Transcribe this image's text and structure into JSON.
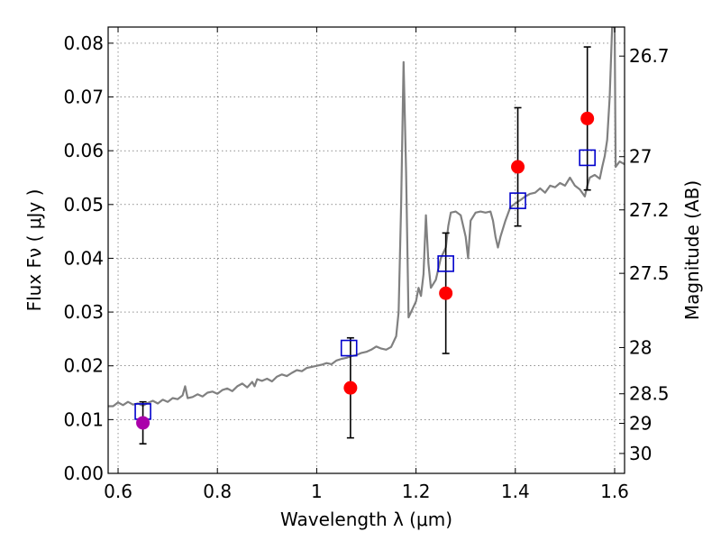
{
  "chart_data": {
    "type": "scatter",
    "title": "",
    "xlabel": "Wavelength  λ (μm)",
    "ylabel": "Flux  Fν  ( μJy )",
    "y2label": "Magnitude (AB)",
    "xlim": [
      0.58,
      1.62
    ],
    "ylim": [
      0.0,
      0.083
    ],
    "grid": true,
    "x_ticks": [
      0.6,
      0.8,
      1.0,
      1.2,
      1.4,
      1.6
    ],
    "x_tick_labels": [
      "0.6",
      "0.8",
      "1",
      "1.2",
      "1.4",
      "1.6"
    ],
    "y_ticks": [
      0.0,
      0.01,
      0.02,
      0.03,
      0.04,
      0.05,
      0.06,
      0.07,
      0.08
    ],
    "y_tick_labels": [
      "0.00",
      "0.01",
      "0.02",
      "0.03",
      "0.04",
      "0.05",
      "0.06",
      "0.07",
      "0.08"
    ],
    "y2_ticks": [
      {
        "label": "26.7",
        "flux": 0.0776
      },
      {
        "label": "27",
        "flux": 0.0589
      },
      {
        "label": "27.2",
        "flux": 0.049
      },
      {
        "label": "27.5",
        "flux": 0.0372
      },
      {
        "label": "28",
        "flux": 0.0234
      },
      {
        "label": "28.5",
        "flux": 0.0148
      },
      {
        "label": "29",
        "flux": 0.0093
      },
      {
        "label": "30",
        "flux": 0.0037
      }
    ],
    "colors": {
      "model": "#808080",
      "observed": "#ff0000",
      "observed_optical": "#aa00aa",
      "model_box": "#0000cc",
      "errorbar": "#000000"
    },
    "series": [
      {
        "name": "model spectrum",
        "kind": "line",
        "points": [
          [
            0.58,
            0.0125
          ],
          [
            0.59,
            0.0125
          ],
          [
            0.6,
            0.0132
          ],
          [
            0.61,
            0.0127
          ],
          [
            0.62,
            0.0133
          ],
          [
            0.63,
            0.0128
          ],
          [
            0.64,
            0.013
          ],
          [
            0.65,
            0.0126
          ],
          [
            0.66,
            0.0131
          ],
          [
            0.67,
            0.0135
          ],
          [
            0.68,
            0.013
          ],
          [
            0.69,
            0.0137
          ],
          [
            0.7,
            0.0133
          ],
          [
            0.71,
            0.014
          ],
          [
            0.72,
            0.0138
          ],
          [
            0.73,
            0.0145
          ],
          [
            0.735,
            0.0162
          ],
          [
            0.74,
            0.014
          ],
          [
            0.75,
            0.0142
          ],
          [
            0.76,
            0.0147
          ],
          [
            0.77,
            0.0143
          ],
          [
            0.78,
            0.015
          ],
          [
            0.79,
            0.0152
          ],
          [
            0.8,
            0.0148
          ],
          [
            0.81,
            0.0155
          ],
          [
            0.82,
            0.0158
          ],
          [
            0.83,
            0.0153
          ],
          [
            0.84,
            0.0162
          ],
          [
            0.85,
            0.0167
          ],
          [
            0.86,
            0.016
          ],
          [
            0.87,
            0.017
          ],
          [
            0.875,
            0.0162
          ],
          [
            0.88,
            0.0175
          ],
          [
            0.89,
            0.0172
          ],
          [
            0.9,
            0.0176
          ],
          [
            0.91,
            0.0171
          ],
          [
            0.92,
            0.018
          ],
          [
            0.93,
            0.0184
          ],
          [
            0.94,
            0.0181
          ],
          [
            0.95,
            0.0187
          ],
          [
            0.96,
            0.0192
          ],
          [
            0.97,
            0.019
          ],
          [
            0.98,
            0.0196
          ],
          [
            0.99,
            0.0198
          ],
          [
            1.0,
            0.02
          ],
          [
            1.01,
            0.0202
          ],
          [
            1.02,
            0.0205
          ],
          [
            1.03,
            0.0203
          ],
          [
            1.04,
            0.021
          ],
          [
            1.05,
            0.0213
          ],
          [
            1.06,
            0.0215
          ],
          [
            1.07,
            0.0218
          ],
          [
            1.08,
            0.022
          ],
          [
            1.09,
            0.0224
          ],
          [
            1.1,
            0.0226
          ],
          [
            1.11,
            0.023
          ],
          [
            1.12,
            0.0236
          ],
          [
            1.13,
            0.0232
          ],
          [
            1.14,
            0.023
          ],
          [
            1.15,
            0.0235
          ],
          [
            1.16,
            0.0255
          ],
          [
            1.165,
            0.03
          ],
          [
            1.17,
            0.05
          ],
          [
            1.175,
            0.0765
          ],
          [
            1.18,
            0.056
          ],
          [
            1.185,
            0.029
          ],
          [
            1.19,
            0.03
          ],
          [
            1.2,
            0.032
          ],
          [
            1.205,
            0.0345
          ],
          [
            1.21,
            0.033
          ],
          [
            1.215,
            0.037
          ],
          [
            1.22,
            0.048
          ],
          [
            1.225,
            0.039
          ],
          [
            1.23,
            0.0345
          ],
          [
            1.24,
            0.036
          ],
          [
            1.25,
            0.04
          ],
          [
            1.26,
            0.042
          ],
          [
            1.265,
            0.046
          ],
          [
            1.27,
            0.0485
          ],
          [
            1.28,
            0.0487
          ],
          [
            1.29,
            0.048
          ],
          [
            1.3,
            0.044
          ],
          [
            1.305,
            0.04
          ],
          [
            1.31,
            0.047
          ],
          [
            1.32,
            0.0485
          ],
          [
            1.33,
            0.0487
          ],
          [
            1.34,
            0.0485
          ],
          [
            1.35,
            0.0487
          ],
          [
            1.355,
            0.047
          ],
          [
            1.36,
            0.044
          ],
          [
            1.365,
            0.042
          ],
          [
            1.37,
            0.044
          ],
          [
            1.38,
            0.047
          ],
          [
            1.39,
            0.0495
          ],
          [
            1.4,
            0.0502
          ],
          [
            1.41,
            0.0508
          ],
          [
            1.42,
            0.0515
          ],
          [
            1.43,
            0.052
          ],
          [
            1.44,
            0.0522
          ],
          [
            1.45,
            0.053
          ],
          [
            1.46,
            0.0522
          ],
          [
            1.47,
            0.0535
          ],
          [
            1.48,
            0.0532
          ],
          [
            1.49,
            0.054
          ],
          [
            1.5,
            0.0535
          ],
          [
            1.51,
            0.055
          ],
          [
            1.52,
            0.0535
          ],
          [
            1.53,
            0.0528
          ],
          [
            1.54,
            0.0515
          ],
          [
            1.545,
            0.0535
          ],
          [
            1.55,
            0.055
          ],
          [
            1.56,
            0.0555
          ],
          [
            1.57,
            0.0548
          ],
          [
            1.575,
            0.057
          ],
          [
            1.58,
            0.059
          ],
          [
            1.585,
            0.062
          ],
          [
            1.59,
            0.07
          ],
          [
            1.595,
            0.083
          ],
          [
            1.6,
            0.083
          ],
          [
            1.602,
            0.057
          ],
          [
            1.61,
            0.058
          ],
          [
            1.62,
            0.0575
          ]
        ]
      },
      {
        "name": "model photometry",
        "kind": "open-square",
        "points": [
          [
            0.65,
            0.0115
          ],
          [
            1.065,
            0.0233
          ],
          [
            1.26,
            0.039
          ],
          [
            1.405,
            0.0507
          ],
          [
            1.545,
            0.0587
          ]
        ]
      },
      {
        "name": "observed photometry",
        "kind": "filled-circle-errorbar",
        "points": [
          {
            "x": 0.65,
            "y": 0.0094,
            "err_lo": 0.0039,
            "err_hi": 0.0039,
            "color": "observed_optical"
          },
          {
            "x": 1.068,
            "y": 0.0159,
            "err_lo": 0.0093,
            "err_hi": 0.0093,
            "color": "observed"
          },
          {
            "x": 1.26,
            "y": 0.0335,
            "err_lo": 0.0112,
            "err_hi": 0.0112,
            "color": "observed"
          },
          {
            "x": 1.405,
            "y": 0.057,
            "err_lo": 0.011,
            "err_hi": 0.011,
            "color": "observed"
          },
          {
            "x": 1.545,
            "y": 0.066,
            "err_lo": 0.0133,
            "err_hi": 0.0133,
            "color": "observed"
          }
        ]
      }
    ]
  }
}
